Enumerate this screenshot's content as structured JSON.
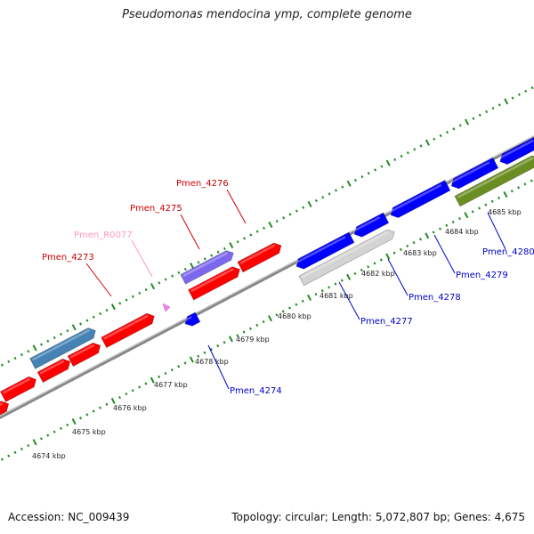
{
  "title": "Pseudomonas mendocina ymp, complete genome",
  "footer": {
    "accession": "Accession: NC_009439",
    "summary": "Topology: circular; Length: 5,072,807 bp; Genes: 4,675"
  },
  "colors": {
    "cds_forward": "#ff0000",
    "cds_reverse": "#0000ff",
    "gene_highlight_blue": "#4682b4",
    "gene_highlight_purple": "#7b68ee",
    "pseudo_gray": "#d3d3d3",
    "olive": "#6b8e23",
    "rna_pink": "#ee82ee",
    "ticks": "#228b22",
    "backbone": "#808080"
  },
  "kbp_labels": [
    "4674 kbp",
    "4675 kbp",
    "4676 kbp",
    "4677 kbp",
    "4678 kbp",
    "4679 kbp",
    "4680 kbp",
    "4681 kbp",
    "4682 kbp",
    "4683 kbp",
    "4684 kbp",
    "4685 kbp"
  ],
  "gene_labels_top": [
    {
      "text": "Pmen_4273",
      "color": "#cc0000"
    },
    {
      "text": "Pmen_R0077",
      "color": "#ff99bb"
    },
    {
      "text": "Pmen_4275",
      "color": "#cc0000"
    },
    {
      "text": "Pmen_4276",
      "color": "#cc0000"
    }
  ],
  "gene_labels_bottom": [
    {
      "text": "Pmen_4274",
      "color": "#0000cc"
    },
    {
      "text": "Pmen_4277",
      "color": "#0000cc"
    },
    {
      "text": "Pmen_4278",
      "color": "#0000cc"
    },
    {
      "text": "Pmen_4279",
      "color": "#0000cc"
    },
    {
      "text": "Pmen_4280",
      "color": "#0000cc"
    }
  ]
}
